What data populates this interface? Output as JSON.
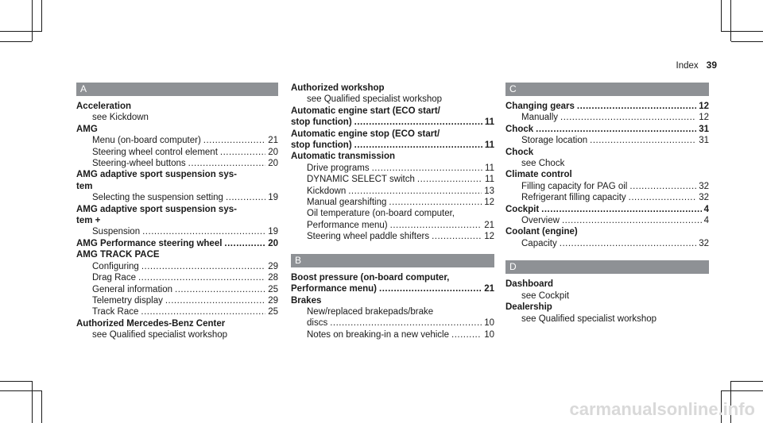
{
  "header": {
    "title": "Index",
    "page": "39"
  },
  "watermark": "carmanualsonline.info",
  "columns": [
    {
      "sections": [
        {
          "letter": "A",
          "entries": [
            {
              "term": "Acceleration",
              "lines": [
                {
                  "text": "see Kickdown"
                }
              ]
            },
            {
              "term": "AMG",
              "lines": [
                {
                  "text": "Menu (on-board computer)",
                  "page": "21"
                },
                {
                  "text": "Steering wheel control element",
                  "page": "20"
                },
                {
                  "text": "Steering-wheel buttons",
                  "page": "20"
                }
              ]
            },
            {
              "term_lines": [
                "AMG adaptive sport suspension sys-",
                "tem"
              ],
              "lines": [
                {
                  "text": "Selecting the suspension setting",
                  "page": "19"
                }
              ]
            },
            {
              "term_lines": [
                "AMG adaptive sport suspension sys-",
                "tem +"
              ],
              "lines": [
                {
                  "text": "Suspension",
                  "page": "19"
                }
              ]
            },
            {
              "term": "AMG Performance steering wheel",
              "page": "20",
              "lines": []
            },
            {
              "term": "AMG TRACK PACE",
              "lines": [
                {
                  "text": "Configuring",
                  "page": "29"
                },
                {
                  "text": "Drag Race",
                  "page": "28"
                },
                {
                  "text": "General information",
                  "page": "25"
                },
                {
                  "text": "Telemetry display",
                  "page": "29"
                },
                {
                  "text": "Track Race",
                  "page": "25"
                }
              ]
            },
            {
              "term": "Authorized Mercedes-Benz Center",
              "lines": [
                {
                  "text": "see Qualified specialist workshop"
                }
              ]
            }
          ]
        }
      ]
    },
    {
      "sections": [
        {
          "letter": "",
          "entries": [
            {
              "term": "Authorized workshop",
              "lines": [
                {
                  "text": "see Qualified specialist workshop"
                }
              ]
            },
            {
              "term_lines": [
                "Automatic engine start (ECO start/",
                "stop function)"
              ],
              "term_page": "11",
              "lines": []
            },
            {
              "term_lines": [
                "Automatic engine stop (ECO start/",
                "stop function)"
              ],
              "term_page": "11",
              "lines": []
            },
            {
              "term": "Automatic transmission",
              "lines": [
                {
                  "text": "Drive programs",
                  "page": "11"
                },
                {
                  "text": "DYNAMIC SELECT switch",
                  "page": "11"
                },
                {
                  "text": "Kickdown",
                  "page": "13"
                },
                {
                  "text": "Manual gearshifting",
                  "page": "12"
                },
                {
                  "text": "Oil temperature (on-board computer,",
                  "page": ""
                },
                {
                  "text": "Performance menu)",
                  "page": "21"
                },
                {
                  "text": "Steering wheel paddle shifters",
                  "page": "12"
                }
              ]
            }
          ]
        },
        {
          "letter": "B",
          "entries": [
            {
              "term_lines": [
                "Boost pressure (on-board computer,",
                "Performance menu)"
              ],
              "term_page": "21",
              "lines": []
            },
            {
              "term": "Brakes",
              "lines": [
                {
                  "text": "New/replaced brakepads/brake",
                  "page": ""
                },
                {
                  "text": "discs",
                  "page": "10"
                },
                {
                  "text": "Notes on breaking-in a new vehicle",
                  "page": "10"
                }
              ]
            }
          ]
        }
      ]
    },
    {
      "sections": [
        {
          "letter": "C",
          "entries": [
            {
              "term": "Changing gears",
              "page": "12",
              "lines": [
                {
                  "text": "Manually",
                  "page": "12"
                }
              ]
            },
            {
              "term": "Chock",
              "page": "31",
              "lines": [
                {
                  "text": "Storage location",
                  "page": "31"
                }
              ]
            },
            {
              "term": "Chock",
              "lines": [
                {
                  "text": "see Chock"
                }
              ]
            },
            {
              "term": "Climate control",
              "lines": [
                {
                  "text": "Filling capacity for PAG oil",
                  "page": "32"
                },
                {
                  "text": "Refrigerant filling capacity",
                  "page": "32"
                }
              ]
            },
            {
              "term": "Cockpit",
              "page": "4",
              "lines": [
                {
                  "text": "Overview",
                  "page": "4"
                }
              ]
            },
            {
              "term": "Coolant (engine)",
              "lines": [
                {
                  "text": "Capacity",
                  "page": "32"
                }
              ]
            }
          ]
        },
        {
          "letter": "D",
          "entries": [
            {
              "term": "Dashboard",
              "lines": [
                {
                  "text": "see Cockpit"
                }
              ]
            },
            {
              "term": "Dealership",
              "lines": [
                {
                  "text": "see Qualified specialist workshop"
                }
              ]
            }
          ]
        }
      ]
    }
  ]
}
